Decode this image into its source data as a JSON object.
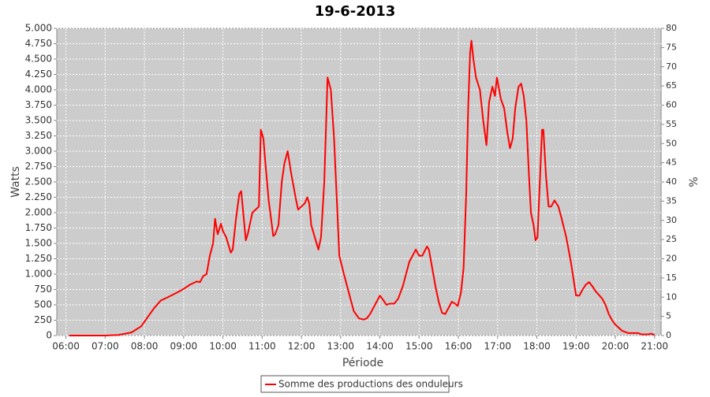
{
  "chart_data": {
    "type": "line",
    "title": "19-6-2013",
    "x_label": "Période",
    "y_label": "Watts",
    "y2_label": "%",
    "x": [
      "06:05",
      "07:00",
      "07:20",
      "07:40",
      "07:55",
      "08:05",
      "08:15",
      "08:25",
      "08:35",
      "08:50",
      "09:00",
      "09:10",
      "09:20",
      "09:25",
      "09:30",
      "09:35",
      "09:40",
      "09:45",
      "09:48",
      "09:52",
      "09:57",
      "10:00",
      "10:05",
      "10:12",
      "10:15",
      "10:20",
      "10:25",
      "10:28",
      "10:35",
      "10:38",
      "10:45",
      "10:50",
      "10:55",
      "10:58",
      "11:02",
      "11:05",
      "11:10",
      "11:17",
      "11:20",
      "11:25",
      "11:30",
      "11:34",
      "11:39",
      "11:45",
      "11:52",
      "11:55",
      "12:00",
      "12:05",
      "12:09",
      "12:12",
      "12:15",
      "12:26",
      "12:30",
      "12:35",
      "12:40",
      "12:45",
      "12:50",
      "12:58",
      "13:05",
      "13:15",
      "13:20",
      "13:28",
      "13:35",
      "13:40",
      "13:45",
      "13:55",
      "14:00",
      "14:05",
      "14:10",
      "14:15",
      "14:22",
      "14:28",
      "14:35",
      "14:40",
      "14:45",
      "14:55",
      "15:00",
      "15:05",
      "15:12",
      "15:15",
      "15:20",
      "15:25",
      "15:30",
      "15:35",
      "15:40",
      "15:45",
      "15:50",
      "15:55",
      "15:59",
      "16:04",
      "16:08",
      "16:12",
      "16:15",
      "16:18",
      "16:20",
      "16:23",
      "16:27",
      "16:33",
      "16:38",
      "16:43",
      "16:47",
      "16:52",
      "16:56",
      "16:59",
      "17:05",
      "17:10",
      "17:15",
      "17:19",
      "17:23",
      "17:27",
      "17:32",
      "17:36",
      "17:40",
      "17:44",
      "17:48",
      "17:51",
      "17:55",
      "17:58",
      "18:01",
      "18:05",
      "18:08",
      "18:10",
      "18:14",
      "18:18",
      "18:22",
      "18:27",
      "18:33",
      "18:38",
      "18:45",
      "18:52",
      "19:00",
      "19:05",
      "19:10",
      "19:15",
      "19:20",
      "19:25",
      "19:30",
      "19:40",
      "19:45",
      "19:50",
      "19:55",
      "20:00",
      "20:10",
      "20:20",
      "20:30",
      "20:35",
      "20:40",
      "20:50",
      "20:55",
      "21:00"
    ],
    "series": [
      {
        "name": "Somme des productions des onduleurs",
        "color": "#ff0000",
        "values": [
          0,
          0,
          10,
          50,
          150,
          300,
          450,
          570,
          620,
          700,
          760,
          830,
          880,
          870,
          970,
          1000,
          1300,
          1500,
          1900,
          1650,
          1820,
          1700,
          1600,
          1350,
          1400,
          1900,
          2300,
          2350,
          1550,
          1650,
          2000,
          2050,
          2100,
          3350,
          3200,
          2800,
          2200,
          1620,
          1650,
          1800,
          2500,
          2800,
          3000,
          2600,
          2200,
          2050,
          2100,
          2150,
          2250,
          2150,
          1800,
          1400,
          1600,
          2500,
          4200,
          4000,
          3200,
          1300,
          1000,
          600,
          400,
          280,
          260,
          280,
          350,
          550,
          650,
          580,
          500,
          520,
          520,
          600,
          800,
          1000,
          1200,
          1400,
          1300,
          1300,
          1450,
          1400,
          1100,
          800,
          550,
          370,
          350,
          450,
          550,
          520,
          480,
          700,
          1100,
          2300,
          3700,
          4600,
          4800,
          4500,
          4200,
          4000,
          3500,
          3100,
          3800,
          4050,
          3900,
          4200,
          3850,
          3700,
          3300,
          3050,
          3200,
          3700,
          4050,
          4100,
          3900,
          3500,
          2600,
          2000,
          1800,
          1550,
          1600,
          2600,
          3350,
          3350,
          2600,
          2100,
          2100,
          2200,
          2100,
          1900,
          1600,
          1200,
          650,
          650,
          750,
          830,
          870,
          800,
          720,
          600,
          500,
          350,
          250,
          180,
          80,
          40,
          40,
          40,
          20,
          20,
          30,
          10
        ]
      }
    ],
    "xlim": [
      "05:46",
      "21:10"
    ],
    "xticks": [
      "06:00",
      "07:00",
      "08:00",
      "09:00",
      "10:00",
      "11:00",
      "12:00",
      "13:00",
      "14:00",
      "15:00",
      "16:00",
      "17:00",
      "18:00",
      "19:00",
      "20:00",
      "21:00"
    ],
    "ylim": [
      0,
      5000
    ],
    "yticks": [
      0,
      250,
      500,
      750,
      {
        "value": 1000,
        "label": "1.000"
      },
      {
        "value": 1250,
        "label": "1.250"
      },
      {
        "value": 1500,
        "label": "1.500"
      },
      {
        "value": 1750,
        "label": "1.750"
      },
      {
        "value": 2000,
        "label": "2.000"
      },
      {
        "value": 2250,
        "label": "2.250"
      },
      {
        "value": 2500,
        "label": "2.500"
      },
      {
        "value": 2750,
        "label": "2.750"
      },
      {
        "value": 3000,
        "label": "3.000"
      },
      {
        "value": 3250,
        "label": "3.250"
      },
      {
        "value": 3500,
        "label": "3.500"
      },
      {
        "value": 3750,
        "label": "3.750"
      },
      {
        "value": 4000,
        "label": "4.000"
      },
      {
        "value": 4250,
        "label": "4.250"
      },
      {
        "value": 4500,
        "label": "4.500"
      },
      {
        "value": 4750,
        "label": "4.750"
      },
      {
        "value": 5000,
        "label": "5.000"
      }
    ],
    "y2lim": [
      0,
      80
    ],
    "y2ticks": [
      0,
      5,
      10,
      15,
      20,
      25,
      30,
      35,
      40,
      45,
      50,
      55,
      60,
      65,
      70,
      75,
      80
    ],
    "grid": true
  }
}
